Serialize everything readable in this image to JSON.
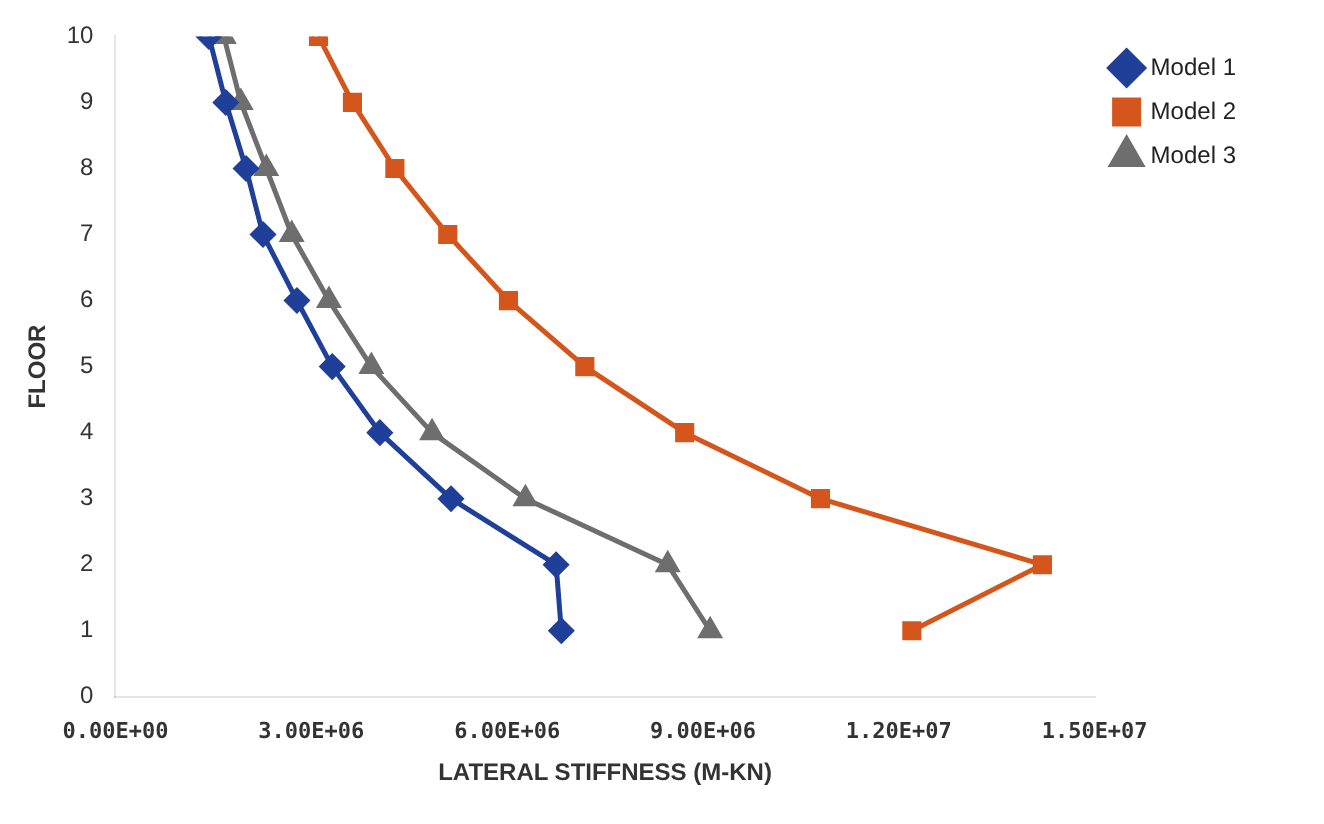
{
  "chart_data": {
    "type": "line",
    "xlabel": "LATERAL STIFFNESS (M-KN)",
    "ylabel": "FLOOR",
    "xlim": [
      0,
      15000000
    ],
    "xticks": [
      {
        "value": 0,
        "label": "0.00E+00"
      },
      {
        "value": 3000000,
        "label": "3.00E+06"
      },
      {
        "value": 6000000,
        "label": "6.00E+06"
      },
      {
        "value": 9000000,
        "label": "9.00E+06"
      },
      {
        "value": 12000000,
        "label": "1.20E+07"
      },
      {
        "value": 15000000,
        "label": "1.50E+07"
      }
    ],
    "ylim": [
      0,
      10
    ],
    "yticks": [
      0,
      1,
      2,
      3,
      4,
      5,
      6,
      7,
      8,
      9,
      10
    ],
    "grid": false,
    "legend": "top right",
    "line_style": "solid",
    "series": [
      {
        "name": "Model 1",
        "color": "#1f3f99",
        "marker": "diamond",
        "x": [
          1430000,
          1690000,
          2000000,
          2260000,
          2780000,
          3320000,
          4050000,
          5140000,
          6750000,
          6830000
        ],
        "values": [
          10,
          9,
          8,
          7,
          6,
          5,
          4,
          3,
          2,
          1
        ]
      },
      {
        "name": "Model 2",
        "color": "#d4561c",
        "marker": "square",
        "x": [
          3110000,
          3630000,
          4280000,
          5090000,
          6020000,
          7190000,
          8720000,
          10800000,
          14200000,
          12200000
        ],
        "values": [
          10,
          9,
          8,
          7,
          6,
          5,
          4,
          3,
          2,
          1
        ]
      },
      {
        "name": "Model 3",
        "color": "#6e6e6e",
        "marker": "triangle",
        "x": [
          1660000,
          1920000,
          2310000,
          2700000,
          3270000,
          3920000,
          4850000,
          6280000,
          8460000,
          9110000
        ],
        "values": [
          10,
          9,
          8,
          7,
          6,
          5,
          4,
          3,
          2,
          1
        ]
      }
    ]
  }
}
